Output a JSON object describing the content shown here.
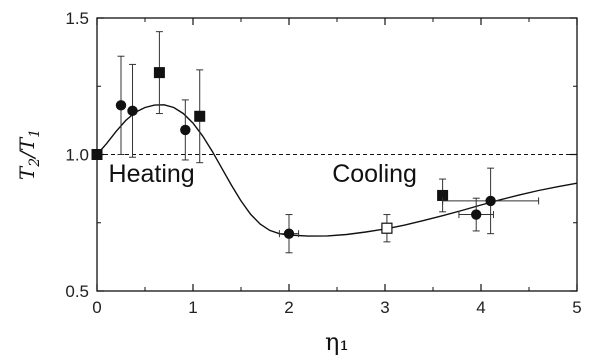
{
  "chart_data": {
    "type": "scatter",
    "xlabel": "η₁",
    "ylabel_main": "T",
    "ylabel_sub2": "2",
    "ylabel_slash": "/",
    "ylabel_sub1": "1",
    "xlim": [
      0,
      5
    ],
    "ylim": [
      0.5,
      1.5
    ],
    "x_ticks": [
      0,
      1,
      2,
      3,
      4,
      5
    ],
    "x_tick_labels": [
      "0",
      "1",
      "2",
      "3",
      "4",
      "5"
    ],
    "y_ticks": [
      0.5,
      1.0,
      1.5
    ],
    "y_tick_labels": [
      "0.5",
      "1.0",
      "1.5"
    ],
    "reference_line": {
      "y": 1.0,
      "style": "dashed"
    },
    "annotations": [
      {
        "text": "Heating",
        "x": 0.12,
        "y": 0.9
      },
      {
        "text": "Cooling",
        "x": 2.45,
        "y": 0.9
      }
    ],
    "series": [
      {
        "marker": "square-filled",
        "points": [
          {
            "x": 0.0,
            "y": 1.0
          },
          {
            "x": 0.65,
            "y": 1.3,
            "yerr": 0.15
          },
          {
            "x": 1.07,
            "y": 1.14,
            "yerr": 0.17
          },
          {
            "x": 3.6,
            "y": 0.85,
            "yerr": 0.06
          }
        ]
      },
      {
        "marker": "circle-filled",
        "points": [
          {
            "x": 0.25,
            "y": 1.18,
            "yerr": 0.18
          },
          {
            "x": 0.37,
            "y": 1.16,
            "yerr": 0.17
          },
          {
            "x": 0.92,
            "y": 1.09,
            "yerr": 0.11
          },
          {
            "x": 2.0,
            "y": 0.71,
            "yerr": 0.07,
            "xerr": 0.1
          },
          {
            "x": 3.95,
            "y": 0.78,
            "yerr": 0.06,
            "xerr": 0.18
          },
          {
            "x": 4.1,
            "y": 0.83,
            "yerr": 0.12,
            "xerr": 0.5
          }
        ]
      },
      {
        "marker": "square-open",
        "points": [
          {
            "x": 3.02,
            "y": 0.73,
            "yerr": 0.05
          }
        ]
      }
    ],
    "fit_curve": {
      "style": "solid",
      "points": [
        [
          0.0,
          1.0
        ],
        [
          0.1,
          1.04
        ],
        [
          0.2,
          1.085
        ],
        [
          0.3,
          1.125
        ],
        [
          0.4,
          1.155
        ],
        [
          0.5,
          1.172
        ],
        [
          0.6,
          1.181
        ],
        [
          0.7,
          1.182
        ],
        [
          0.8,
          1.172
        ],
        [
          0.9,
          1.15
        ],
        [
          1.0,
          1.115
        ],
        [
          1.1,
          1.068
        ],
        [
          1.2,
          1.012
        ],
        [
          1.3,
          0.95
        ],
        [
          1.4,
          0.888
        ],
        [
          1.5,
          0.83
        ],
        [
          1.6,
          0.781
        ],
        [
          1.7,
          0.745
        ],
        [
          1.8,
          0.722
        ],
        [
          1.9,
          0.71
        ],
        [
          2.0,
          0.705
        ],
        [
          2.2,
          0.701
        ],
        [
          2.4,
          0.702
        ],
        [
          2.6,
          0.707
        ],
        [
          2.8,
          0.716
        ],
        [
          3.0,
          0.727
        ],
        [
          3.2,
          0.741
        ],
        [
          3.4,
          0.758
        ],
        [
          3.6,
          0.776
        ],
        [
          3.8,
          0.795
        ],
        [
          4.0,
          0.815
        ],
        [
          4.2,
          0.834
        ],
        [
          4.4,
          0.852
        ],
        [
          4.6,
          0.868
        ],
        [
          4.8,
          0.882
        ],
        [
          5.0,
          0.895
        ]
      ]
    }
  }
}
